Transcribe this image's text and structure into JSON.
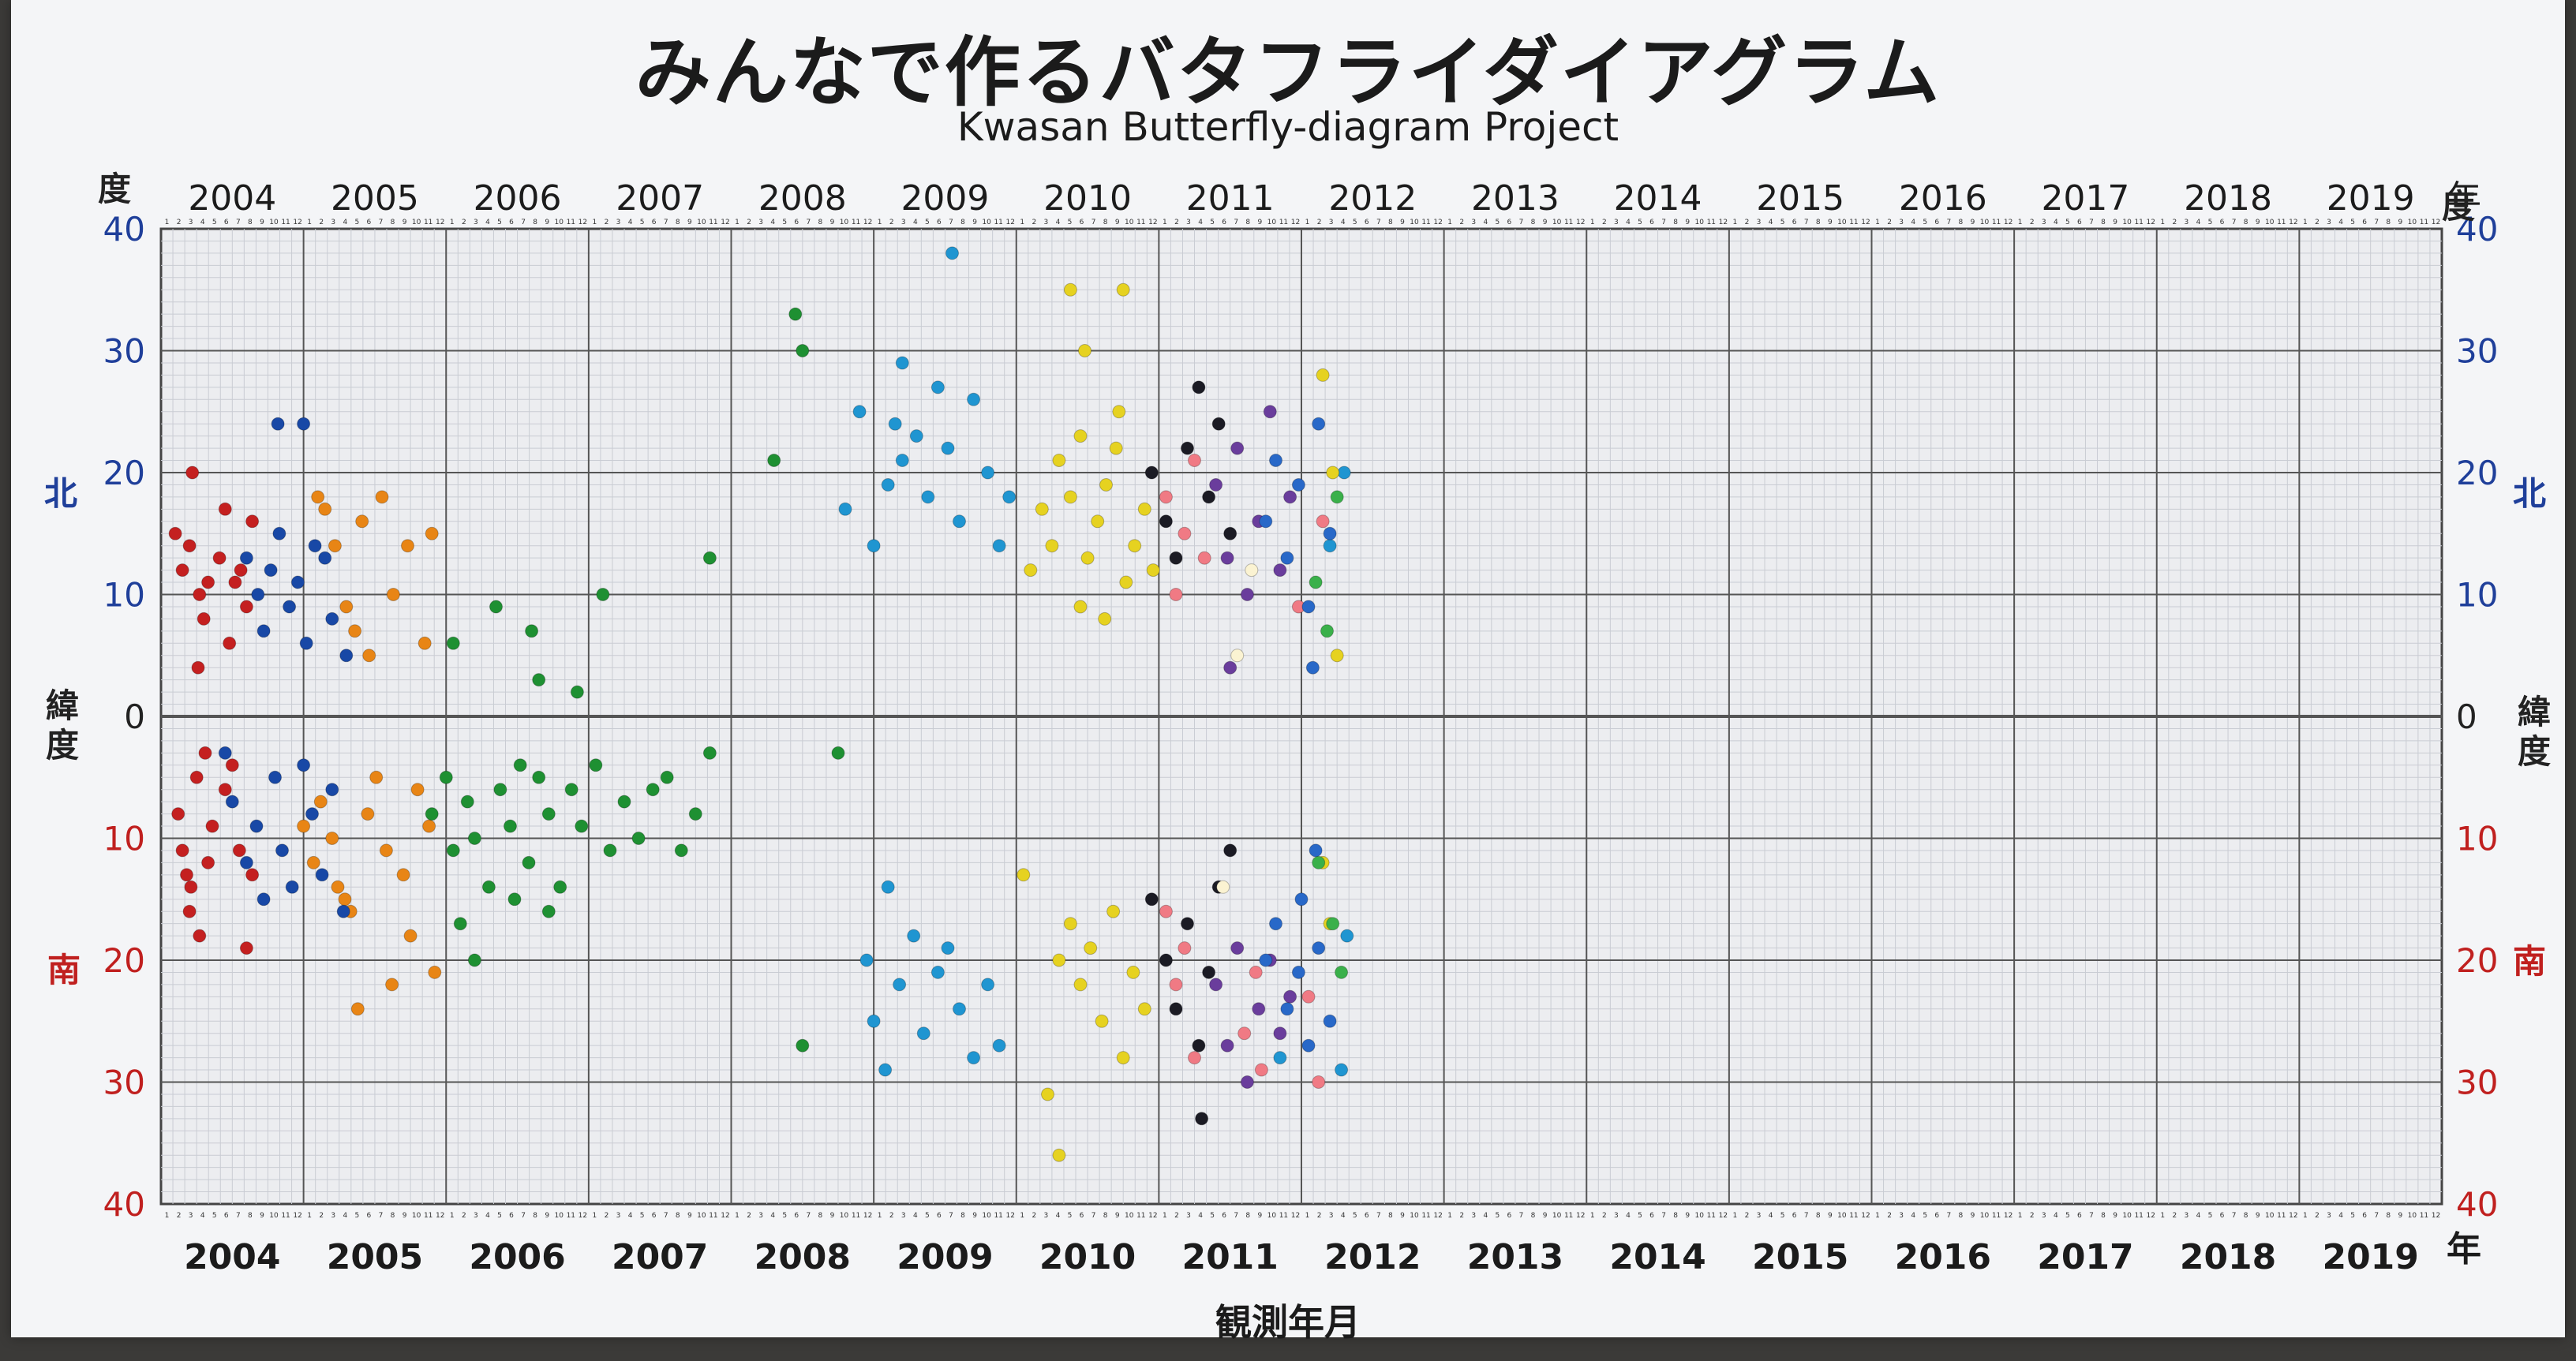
{
  "title": "みんなで作るバタフライダイアグラム",
  "subtitle": "Kwasan Butterfly-diagram Project",
  "xlabel": "観測年月",
  "year_suffix": "年",
  "degree_label": "度",
  "north_label": "北",
  "south_label": "南",
  "latitude_label": "緯度",
  "chart_data": {
    "type": "scatter",
    "title": "みんなで作るバタフライダイアグラム",
    "subtitle": "Kwasan Butterfly-diagram Project",
    "xlabel": "観測年月",
    "ylabel": "緯度",
    "x_unit": "年",
    "y_unit": "度",
    "x_tick_labels": [
      "2004",
      "2005",
      "2006",
      "2007",
      "2008",
      "2009",
      "2010",
      "2011",
      "2012",
      "2013",
      "2014",
      "2015",
      "2016",
      "2017",
      "2018",
      "2019"
    ],
    "month_tick_labels": [
      "1",
      "2",
      "3",
      "4",
      "5",
      "6",
      "7",
      "8",
      "9",
      "10",
      "11",
      "12"
    ],
    "xlim": [
      2004.0,
      2020.0
    ],
    "ylim": [
      -40,
      40
    ],
    "y_tick_labels_north": [
      "40",
      "30",
      "20",
      "10"
    ],
    "y_tick_labels_south": [
      "10",
      "20",
      "30",
      "40"
    ],
    "y_zero_label": "0",
    "north_color": "#1f3f9a",
    "south_color": "#c0201f",
    "grid": true,
    "series": [
      {
        "color": "#c42020",
        "points": [
          [
            2004.12,
            -8
          ],
          [
            2004.15,
            -11
          ],
          [
            2004.18,
            -13
          ],
          [
            2004.21,
            -14
          ],
          [
            2004.2,
            -16
          ],
          [
            2004.27,
            -18
          ],
          [
            2004.33,
            -12
          ],
          [
            2004.36,
            -9
          ],
          [
            2004.45,
            -6
          ],
          [
            2004.55,
            -11
          ],
          [
            2004.6,
            -19
          ],
          [
            2004.64,
            -13
          ],
          [
            2004.25,
            -5
          ],
          [
            2004.31,
            -3
          ],
          [
            2004.5,
            -4
          ],
          [
            2004.1,
            15
          ],
          [
            2004.15,
            12
          ],
          [
            2004.2,
            14
          ],
          [
            2004.27,
            10
          ],
          [
            2004.3,
            8
          ],
          [
            2004.33,
            11
          ],
          [
            2004.41,
            13
          ],
          [
            2004.45,
            17
          ],
          [
            2004.52,
            11
          ],
          [
            2004.6,
            9
          ],
          [
            2004.64,
            16
          ],
          [
            2004.22,
            20
          ],
          [
            2004.56,
            12
          ],
          [
            2004.48,
            6
          ],
          [
            2004.26,
            4
          ]
        ]
      },
      {
        "color": "#e88515",
        "points": [
          [
            2005.0,
            -9
          ],
          [
            2005.07,
            -12
          ],
          [
            2005.12,
            -7
          ],
          [
            2005.2,
            -10
          ],
          [
            2005.24,
            -14
          ],
          [
            2005.29,
            -15
          ],
          [
            2005.33,
            -16
          ],
          [
            2005.38,
            -24
          ],
          [
            2005.45,
            -8
          ],
          [
            2005.51,
            -5
          ],
          [
            2005.58,
            -11
          ],
          [
            2005.62,
            -22
          ],
          [
            2005.7,
            -13
          ],
          [
            2005.75,
            -18
          ],
          [
            2005.8,
            -6
          ],
          [
            2005.88,
            -9
          ],
          [
            2005.92,
            -21
          ],
          [
            2005.1,
            18
          ],
          [
            2005.15,
            17
          ],
          [
            2005.22,
            14
          ],
          [
            2005.3,
            9
          ],
          [
            2005.36,
            7
          ],
          [
            2005.41,
            16
          ],
          [
            2005.46,
            5
          ],
          [
            2005.55,
            18
          ],
          [
            2005.63,
            10
          ],
          [
            2005.73,
            14
          ],
          [
            2005.85,
            6
          ],
          [
            2005.9,
            15
          ]
        ]
      },
      {
        "color": "#1848a6",
        "points": [
          [
            2004.45,
            -3
          ],
          [
            2004.5,
            -7
          ],
          [
            2004.6,
            -12
          ],
          [
            2004.67,
            -9
          ],
          [
            2004.72,
            -15
          ],
          [
            2004.8,
            -5
          ],
          [
            2004.85,
            -11
          ],
          [
            2004.92,
            -14
          ],
          [
            2005.0,
            -4
          ],
          [
            2005.06,
            -8
          ],
          [
            2005.13,
            -13
          ],
          [
            2005.2,
            -6
          ],
          [
            2005.28,
            -16
          ],
          [
            2004.6,
            13
          ],
          [
            2004.68,
            10
          ],
          [
            2004.72,
            7
          ],
          [
            2004.77,
            12
          ],
          [
            2004.83,
            15
          ],
          [
            2004.9,
            9
          ],
          [
            2004.96,
            11
          ],
          [
            2005.02,
            6
          ],
          [
            2005.08,
            14
          ],
          [
            2005.15,
            13
          ],
          [
            2005.2,
            8
          ],
          [
            2004.82,
            24
          ],
          [
            2005.0,
            24
          ],
          [
            2005.3,
            5
          ]
        ]
      },
      {
        "color": "#1e9032",
        "points": [
          [
            2005.9,
            -8
          ],
          [
            2006.0,
            -5
          ],
          [
            2006.05,
            -11
          ],
          [
            2006.15,
            -7
          ],
          [
            2006.2,
            -10
          ],
          [
            2006.3,
            -14
          ],
          [
            2006.38,
            -6
          ],
          [
            2006.45,
            -9
          ],
          [
            2006.52,
            -4
          ],
          [
            2006.58,
            -12
          ],
          [
            2006.65,
            -5
          ],
          [
            2006.72,
            -8
          ],
          [
            2006.8,
            -14
          ],
          [
            2006.88,
            -6
          ],
          [
            2006.95,
            -9
          ],
          [
            2007.05,
            -4
          ],
          [
            2007.15,
            -11
          ],
          [
            2007.25,
            -7
          ],
          [
            2007.35,
            -10
          ],
          [
            2007.45,
            -6
          ],
          [
            2007.55,
            -5
          ],
          [
            2007.65,
            -11
          ],
          [
            2007.75,
            -8
          ],
          [
            2007.85,
            -3
          ],
          [
            2006.1,
            -17
          ],
          [
            2006.2,
            -20
          ],
          [
            2006.48,
            -15
          ],
          [
            2006.65,
            3
          ],
          [
            2006.72,
            -16
          ],
          [
            2006.05,
            6
          ],
          [
            2006.35,
            9
          ],
          [
            2006.6,
            7
          ],
          [
            2007.1,
            10
          ],
          [
            2008.3,
            21
          ],
          [
            2008.45,
            33
          ],
          [
            2008.5,
            30
          ],
          [
            2008.5,
            -27
          ],
          [
            2008.75,
            -3
          ],
          [
            2007.85,
            13
          ],
          [
            2006.92,
            2
          ]
        ]
      },
      {
        "color": "#1f95d1",
        "points": [
          [
            2008.8,
            17
          ],
          [
            2008.9,
            25
          ],
          [
            2009.0,
            14
          ],
          [
            2009.1,
            19
          ],
          [
            2009.15,
            24
          ],
          [
            2009.2,
            21
          ],
          [
            2009.3,
            23
          ],
          [
            2009.38,
            18
          ],
          [
            2009.45,
            27
          ],
          [
            2009.52,
            22
          ],
          [
            2009.6,
            16
          ],
          [
            2009.7,
            26
          ],
          [
            2009.8,
            20
          ],
          [
            2009.88,
            14
          ],
          [
            2009.95,
            18
          ],
          [
            2009.2,
            29
          ],
          [
            2009.55,
            38
          ],
          [
            2008.95,
            -20
          ],
          [
            2009.0,
            -25
          ],
          [
            2009.08,
            -29
          ],
          [
            2009.18,
            -22
          ],
          [
            2009.28,
            -18
          ],
          [
            2009.35,
            -26
          ],
          [
            2009.45,
            -21
          ],
          [
            2009.52,
            -19
          ],
          [
            2009.6,
            -24
          ],
          [
            2009.7,
            -28
          ],
          [
            2009.8,
            -22
          ],
          [
            2009.88,
            -27
          ],
          [
            2009.1,
            -14
          ],
          [
            2011.85,
            -28
          ],
          [
            2012.2,
            14
          ],
          [
            2012.3,
            20
          ],
          [
            2012.32,
            -18
          ],
          [
            2012.28,
            -29
          ]
        ]
      },
      {
        "color": "#e6d220",
        "points": [
          [
            2010.1,
            12
          ],
          [
            2010.18,
            17
          ],
          [
            2010.25,
            14
          ],
          [
            2010.3,
            21
          ],
          [
            2010.38,
            18
          ],
          [
            2010.45,
            23
          ],
          [
            2010.5,
            13
          ],
          [
            2010.57,
            16
          ],
          [
            2010.63,
            19
          ],
          [
            2010.7,
            22
          ],
          [
            2010.77,
            11
          ],
          [
            2010.83,
            14
          ],
          [
            2010.9,
            17
          ],
          [
            2010.96,
            12
          ],
          [
            2010.38,
            35
          ],
          [
            2010.48,
            30
          ],
          [
            2010.75,
            35
          ],
          [
            2010.45,
            9
          ],
          [
            2010.62,
            8
          ],
          [
            2010.72,
            25
          ],
          [
            2010.3,
            -20
          ],
          [
            2010.38,
            -17
          ],
          [
            2010.45,
            -22
          ],
          [
            2010.52,
            -19
          ],
          [
            2010.6,
            -25
          ],
          [
            2010.68,
            -16
          ],
          [
            2010.75,
            -28
          ],
          [
            2010.82,
            -21
          ],
          [
            2010.9,
            -24
          ],
          [
            2010.22,
            -31
          ],
          [
            2010.3,
            -36
          ],
          [
            2010.05,
            -13
          ],
          [
            2012.15,
            -12
          ],
          [
            2012.2,
            -17
          ],
          [
            2012.22,
            20
          ],
          [
            2012.25,
            5
          ],
          [
            2012.15,
            28
          ]
        ]
      },
      {
        "color": "#1b1b24",
        "points": [
          [
            2010.95,
            20
          ],
          [
            2011.05,
            16
          ],
          [
            2011.12,
            13
          ],
          [
            2011.2,
            22
          ],
          [
            2011.28,
            27
          ],
          [
            2011.35,
            18
          ],
          [
            2011.42,
            24
          ],
          [
            2011.5,
            15
          ],
          [
            2010.95,
            -15
          ],
          [
            2011.05,
            -20
          ],
          [
            2011.12,
            -24
          ],
          [
            2011.2,
            -17
          ],
          [
            2011.28,
            -27
          ],
          [
            2011.35,
            -21
          ],
          [
            2011.42,
            -14
          ],
          [
            2011.5,
            -11
          ],
          [
            2011.3,
            -33
          ]
        ]
      },
      {
        "color": "#6a3d9c",
        "points": [
          [
            2011.4,
            19
          ],
          [
            2011.48,
            13
          ],
          [
            2011.55,
            22
          ],
          [
            2011.62,
            10
          ],
          [
            2011.7,
            16
          ],
          [
            2011.78,
            25
          ],
          [
            2011.85,
            12
          ],
          [
            2011.92,
            18
          ],
          [
            2011.5,
            4
          ],
          [
            2011.4,
            -22
          ],
          [
            2011.48,
            -27
          ],
          [
            2011.55,
            -19
          ],
          [
            2011.62,
            -30
          ],
          [
            2011.7,
            -24
          ],
          [
            2011.78,
            -20
          ],
          [
            2011.85,
            -26
          ],
          [
            2011.92,
            -23
          ]
        ]
      },
      {
        "color": "#f07a84",
        "points": [
          [
            2011.05,
            18
          ],
          [
            2011.12,
            10
          ],
          [
            2011.18,
            15
          ],
          [
            2011.25,
            21
          ],
          [
            2011.32,
            13
          ],
          [
            2011.05,
            -16
          ],
          [
            2011.12,
            -22
          ],
          [
            2011.18,
            -19
          ],
          [
            2011.25,
            -28
          ],
          [
            2011.6,
            -26
          ],
          [
            2011.68,
            -21
          ],
          [
            2011.72,
            -29
          ],
          [
            2012.05,
            -23
          ],
          [
            2012.12,
            -30
          ],
          [
            2012.15,
            16
          ],
          [
            2011.98,
            9
          ]
        ]
      },
      {
        "color": "#2868c8",
        "points": [
          [
            2011.75,
            16
          ],
          [
            2011.82,
            21
          ],
          [
            2011.9,
            13
          ],
          [
            2011.98,
            19
          ],
          [
            2012.05,
            9
          ],
          [
            2012.12,
            24
          ],
          [
            2012.2,
            15
          ],
          [
            2012.08,
            4
          ],
          [
            2011.75,
            -20
          ],
          [
            2011.82,
            -17
          ],
          [
            2011.9,
            -24
          ],
          [
            2011.98,
            -21
          ],
          [
            2012.05,
            -27
          ],
          [
            2012.12,
            -19
          ],
          [
            2012.2,
            -25
          ],
          [
            2012.0,
            -15
          ],
          [
            2012.1,
            -11
          ]
        ]
      },
      {
        "color": "#3ab04a",
        "points": [
          [
            2012.1,
            11
          ],
          [
            2012.18,
            7
          ],
          [
            2012.25,
            18
          ],
          [
            2012.12,
            -12
          ],
          [
            2012.22,
            -17
          ],
          [
            2012.28,
            -21
          ]
        ]
      },
      {
        "color": "#fbf3d2",
        "points": [
          [
            2011.65,
            12
          ],
          [
            2011.55,
            5
          ],
          [
            2011.45,
            -14
          ]
        ]
      }
    ]
  }
}
